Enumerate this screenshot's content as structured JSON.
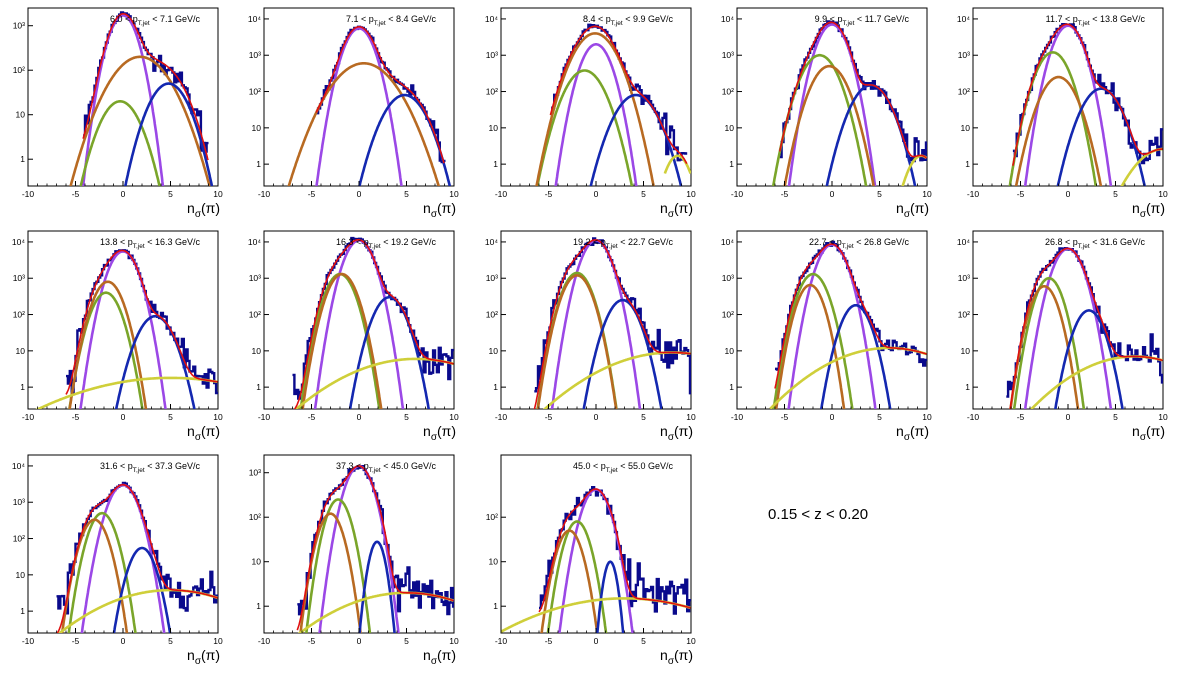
{
  "figure": {
    "z_range_label": "0.15 < z < 0.20",
    "xlabel": "n",
    "xlabel_sub": "σ",
    "xlabel_tail": "(π)",
    "colors": {
      "data": "#0a0a8c",
      "total_fit": "#e01010",
      "pion": "#9b48e6",
      "kaon": "#7aa52a",
      "proton": "#b86a22",
      "electron": "#1428b0",
      "background": "#cfcf3a"
    }
  },
  "chart_data": [
    {
      "type": "histogram-fit",
      "title_main": "6.0 < p",
      "title_sub": "T,jet",
      "title_tail": " < 7.1 GeV/c",
      "xlim": [
        -10,
        10
      ],
      "ylim_log": [
        0.25,
        2500
      ],
      "yscale": "log",
      "x_ticks": [
        "-10",
        "-5",
        "0",
        "5",
        "10"
      ],
      "y_ticks": [
        {
          "v": 1,
          "label": "1"
        },
        {
          "v": 10,
          "label": "10"
        },
        {
          "v": 100,
          "label": "10²"
        },
        {
          "v": 1000,
          "label": "10³"
        }
      ],
      "data_range": [
        -4.2,
        9.0
      ],
      "components": [
        {
          "name": "pion",
          "amp": 1700,
          "mu": 0.0,
          "sigma": 1.0
        },
        {
          "name": "kaon",
          "amp": 20,
          "mu": -0.3,
          "sigma": 1.4
        },
        {
          "name": "proton",
          "amp": 200,
          "mu": 1.8,
          "sigma": 2.0
        },
        {
          "name": "electron",
          "amp": 50,
          "mu": 4.8,
          "sigma": 1.4
        }
      ]
    },
    {
      "type": "histogram-fit",
      "title_main": "7.1 < p",
      "title_sub": "T,jet",
      "title_tail": " < 8.4 GeV/c",
      "xlim": [
        -10,
        10
      ],
      "ylim_log": [
        0.25,
        20000
      ],
      "yscale": "log",
      "x_ticks": [
        "-10",
        "-5",
        "0",
        "5",
        "10"
      ],
      "y_ticks": [
        {
          "v": 1,
          "label": "1"
        },
        {
          "v": 10,
          "label": "10"
        },
        {
          "v": 100,
          "label": "10²"
        },
        {
          "v": 1000,
          "label": "10³"
        },
        {
          "v": 10000,
          "label": "10⁴"
        }
      ],
      "data_range": [
        -4.5,
        9.0
      ],
      "components": [
        {
          "name": "pion",
          "amp": 5500,
          "mu": 0.0,
          "sigma": 1.0
        },
        {
          "name": "proton",
          "amp": 600,
          "mu": 0.5,
          "sigma": 2.0
        },
        {
          "name": "electron",
          "amp": 80,
          "mu": 4.8,
          "sigma": 1.4
        }
      ]
    },
    {
      "type": "histogram-fit",
      "title_main": "8.4 < p",
      "title_sub": "T,jet",
      "title_tail": " < 9.9 GeV/c",
      "xlim": [
        -10,
        10
      ],
      "ylim_log": [
        0.25,
        20000
      ],
      "yscale": "log",
      "x_ticks": [
        "-10",
        "-5",
        "0",
        "5",
        "10"
      ],
      "y_ticks": [
        {
          "v": 1,
          "label": "1"
        },
        {
          "v": 10,
          "label": "10"
        },
        {
          "v": 100,
          "label": "10²"
        },
        {
          "v": 1000,
          "label": "10³"
        },
        {
          "v": 10000,
          "label": "10⁴"
        }
      ],
      "data_range": [
        -4.8,
        9.6
      ],
      "components": [
        {
          "name": "pion",
          "amp": 2000,
          "mu": 0.0,
          "sigma": 1.0
        },
        {
          "name": "kaon",
          "amp": 380,
          "mu": -1.2,
          "sigma": 1.3
        },
        {
          "name": "proton",
          "amp": 4000,
          "mu": -0.1,
          "sigma": 1.4
        },
        {
          "name": "electron",
          "amp": 80,
          "mu": 4.2,
          "sigma": 1.4
        },
        {
          "name": "background",
          "amp": 1.7,
          "mu": 8.6,
          "sigma": 0.9,
          "cut": [
            7.2,
            10
          ]
        }
      ]
    },
    {
      "type": "histogram-fit",
      "title_main": "9.9 < p",
      "title_sub": "T,jet",
      "title_tail": " < 11.7 GeV/c",
      "xlim": [
        -10,
        10
      ],
      "ylim_log": [
        0.25,
        20000
      ],
      "yscale": "log",
      "x_ticks": [
        "-10",
        "-5",
        "0",
        "5",
        "10"
      ],
      "y_ticks": [
        {
          "v": 1,
          "label": "1"
        },
        {
          "v": 10,
          "label": "10"
        },
        {
          "v": 100,
          "label": "10²"
        },
        {
          "v": 1000,
          "label": "10³"
        },
        {
          "v": 10000,
          "label": "10⁴"
        }
      ],
      "data_range": [
        -5.5,
        10.0
      ],
      "components": [
        {
          "name": "pion",
          "amp": 7000,
          "mu": 0.0,
          "sigma": 1.0
        },
        {
          "name": "kaon",
          "amp": 1000,
          "mu": -1.3,
          "sigma": 1.2
        },
        {
          "name": "proton",
          "amp": 500,
          "mu": -0.3,
          "sigma": 1.2
        },
        {
          "name": "electron",
          "amp": 150,
          "mu": 4.1,
          "sigma": 1.3
        },
        {
          "name": "background",
          "amp": 1.7,
          "mu": 9.4,
          "sigma": 1.0,
          "cut": [
            7.0,
            10
          ]
        }
      ]
    },
    {
      "type": "histogram-fit",
      "title_main": "11.7 < p",
      "title_sub": "T,jet",
      "title_tail": " < 13.8 GeV/c",
      "xlim": [
        -10,
        10
      ],
      "ylim_log": [
        0.25,
        20000
      ],
      "yscale": "log",
      "x_ticks": [
        "-10",
        "-5",
        "0",
        "5",
        "10"
      ],
      "y_ticks": [
        {
          "v": 1,
          "label": "1"
        },
        {
          "v": 10,
          "label": "10"
        },
        {
          "v": 100,
          "label": "10²"
        },
        {
          "v": 1000,
          "label": "10³"
        },
        {
          "v": 10000,
          "label": "10⁴"
        }
      ],
      "data_range": [
        -5.8,
        10.0
      ],
      "components": [
        {
          "name": "pion",
          "amp": 6500,
          "mu": 0.0,
          "sigma": 1.0
        },
        {
          "name": "kaon",
          "amp": 1200,
          "mu": -1.6,
          "sigma": 1.1
        },
        {
          "name": "proton",
          "amp": 250,
          "mu": -1.0,
          "sigma": 1.2
        },
        {
          "name": "electron",
          "amp": 120,
          "mu": 3.5,
          "sigma": 1.3
        },
        {
          "name": "background",
          "amp": 2.6,
          "mu": 10.0,
          "sigma": 2.0,
          "cut": [
            5.0,
            10
          ]
        }
      ]
    },
    {
      "type": "histogram-fit",
      "title_main": "13.8 < p",
      "title_sub": "T,jet",
      "title_tail": " < 16.3 GeV/c",
      "xlim": [
        -10,
        10
      ],
      "ylim_log": [
        0.25,
        20000
      ],
      "yscale": "log",
      "x_ticks": [
        "-10",
        "-5",
        "0",
        "5",
        "10"
      ],
      "y_ticks": [
        {
          "v": 1,
          "label": "1"
        },
        {
          "v": 10,
          "label": "10"
        },
        {
          "v": 100,
          "label": "10²"
        },
        {
          "v": 1000,
          "label": "10³"
        },
        {
          "v": 10000,
          "label": "10⁴"
        }
      ],
      "data_range": [
        -6.0,
        10.0
      ],
      "components": [
        {
          "name": "pion",
          "amp": 5500,
          "mu": 0.0,
          "sigma": 1.0
        },
        {
          "name": "kaon",
          "amp": 400,
          "mu": -1.8,
          "sigma": 1.0
        },
        {
          "name": "proton",
          "amp": 800,
          "mu": -1.6,
          "sigma": 1.0
        },
        {
          "name": "electron",
          "amp": 90,
          "mu": 3.4,
          "sigma": 1.2
        },
        {
          "name": "background",
          "amp": 1.8,
          "mu": 5.0,
          "sigma": 7.0,
          "cut": [
            -10,
            10
          ]
        }
      ]
    },
    {
      "type": "histogram-fit",
      "title_main": "16.3 < p",
      "title_sub": "T,jet",
      "title_tail": " < 19.2 GeV/c",
      "xlim": [
        -10,
        10
      ],
      "ylim_log": [
        0.25,
        20000
      ],
      "yscale": "log",
      "x_ticks": [
        "-10",
        "-5",
        "0",
        "5",
        "10"
      ],
      "y_ticks": [
        {
          "v": 1,
          "label": "1"
        },
        {
          "v": 10,
          "label": "10"
        },
        {
          "v": 100,
          "label": "10²"
        },
        {
          "v": 1000,
          "label": "10³"
        },
        {
          "v": 10000,
          "label": "10⁴"
        }
      ],
      "data_range": [
        -7.0,
        10.0
      ],
      "components": [
        {
          "name": "pion",
          "amp": 11000,
          "mu": 0.0,
          "sigma": 1.0
        },
        {
          "name": "kaon",
          "amp": 1300,
          "mu": -2.0,
          "sigma": 1.0
        },
        {
          "name": "proton",
          "amp": 1300,
          "mu": -1.8,
          "sigma": 1.0
        },
        {
          "name": "electron",
          "amp": 300,
          "mu": 3.2,
          "sigma": 1.1
        },
        {
          "name": "background",
          "amp": 6.0,
          "mu": 6.0,
          "sigma": 5.0,
          "cut": [
            -10,
            10
          ]
        }
      ]
    },
    {
      "type": "histogram-fit",
      "title_main": "19.2 < p",
      "title_sub": "T,jet",
      "title_tail": " < 22.7 GeV/c",
      "xlim": [
        -10,
        10
      ],
      "ylim_log": [
        0.25,
        20000
      ],
      "yscale": "log",
      "x_ticks": [
        "-10",
        "-5",
        "0",
        "5",
        "10"
      ],
      "y_ticks": [
        {
          "v": 1,
          "label": "1"
        },
        {
          "v": 10,
          "label": "10"
        },
        {
          "v": 100,
          "label": "10²"
        },
        {
          "v": 1000,
          "label": "10³"
        },
        {
          "v": 10000,
          "label": "10⁴"
        }
      ],
      "data_range": [
        -6.5,
        10.0
      ],
      "components": [
        {
          "name": "pion",
          "amp": 11000,
          "mu": 0.0,
          "sigma": 1.0
        },
        {
          "name": "kaon",
          "amp": 1400,
          "mu": -2.0,
          "sigma": 1.0
        },
        {
          "name": "proton",
          "amp": 1200,
          "mu": -2.0,
          "sigma": 1.0
        },
        {
          "name": "electron",
          "amp": 250,
          "mu": 2.8,
          "sigma": 1.1
        },
        {
          "name": "background",
          "amp": 9.0,
          "mu": 8.0,
          "sigma": 5.0,
          "cut": [
            -8,
            10
          ]
        }
      ]
    },
    {
      "type": "histogram-fit",
      "title_main": "22.7 < p",
      "title_sub": "T,jet",
      "title_tail": " < 26.8 GeV/c",
      "xlim": [
        -10,
        10
      ],
      "ylim_log": [
        0.25,
        20000
      ],
      "yscale": "log",
      "x_ticks": [
        "-10",
        "-5",
        "0",
        "5",
        "10"
      ],
      "y_ticks": [
        {
          "v": 1,
          "label": "1"
        },
        {
          "v": 10,
          "label": "10"
        },
        {
          "v": 100,
          "label": "10²"
        },
        {
          "v": 1000,
          "label": "10³"
        },
        {
          "v": 10000,
          "label": "10⁴"
        }
      ],
      "data_range": [
        -6.0,
        10.0
      ],
      "components": [
        {
          "name": "pion",
          "amp": 8500,
          "mu": 0.0,
          "sigma": 1.0
        },
        {
          "name": "kaon",
          "amp": 1300,
          "mu": -2.0,
          "sigma": 1.0
        },
        {
          "name": "proton",
          "amp": 650,
          "mu": -2.3,
          "sigma": 0.9
        },
        {
          "name": "electron",
          "amp": 180,
          "mu": 2.5,
          "sigma": 1.0
        },
        {
          "name": "background",
          "amp": 12.0,
          "mu": 6.0,
          "sigma": 4.5,
          "cut": [
            -6.5,
            10
          ]
        }
      ]
    },
    {
      "type": "histogram-fit",
      "title_main": "26.8 < p",
      "title_sub": "T,jet",
      "title_tail": " < 31.6 GeV/c",
      "xlim": [
        -10,
        10
      ],
      "ylim_log": [
        0.25,
        20000
      ],
      "yscale": "log",
      "x_ticks": [
        "-10",
        "-5",
        "0",
        "5",
        "10"
      ],
      "y_ticks": [
        {
          "v": 1,
          "label": "1"
        },
        {
          "v": 10,
          "label": "10"
        },
        {
          "v": 100,
          "label": "10²"
        },
        {
          "v": 1000,
          "label": "10³"
        },
        {
          "v": 10000,
          "label": "10⁴"
        }
      ],
      "data_range": [
        -6.5,
        10.0
      ],
      "components": [
        {
          "name": "pion",
          "amp": 6500,
          "mu": 0.0,
          "sigma": 1.0
        },
        {
          "name": "kaon",
          "amp": 1000,
          "mu": -2.0,
          "sigma": 0.9
        },
        {
          "name": "proton",
          "amp": 600,
          "mu": -2.5,
          "sigma": 0.9
        },
        {
          "name": "electron",
          "amp": 130,
          "mu": 2.2,
          "sigma": 1.0
        },
        {
          "name": "background",
          "amp": 7.0,
          "mu": 7.0,
          "sigma": 4.2,
          "cut": [
            -5,
            10
          ]
        }
      ]
    },
    {
      "type": "histogram-fit",
      "title_main": "31.6 < p",
      "title_sub": "T,jet",
      "title_tail": " < 37.3 GeV/c",
      "xlim": [
        -10,
        10
      ],
      "ylim_log": [
        0.25,
        20000
      ],
      "yscale": "log",
      "x_ticks": [
        "-10",
        "-5",
        "0",
        "5",
        "10"
      ],
      "y_ticks": [
        {
          "v": 1,
          "label": "1"
        },
        {
          "v": 10,
          "label": "10"
        },
        {
          "v": 100,
          "label": "10²"
        },
        {
          "v": 1000,
          "label": "10³"
        },
        {
          "v": 10000,
          "label": "10⁴"
        }
      ],
      "data_range": [
        -7.0,
        10.0
      ],
      "components": [
        {
          "name": "pion",
          "amp": 3000,
          "mu": 0.0,
          "sigma": 1.0
        },
        {
          "name": "kaon",
          "amp": 500,
          "mu": -2.2,
          "sigma": 0.9
        },
        {
          "name": "proton",
          "amp": 330,
          "mu": -3.0,
          "sigma": 0.9
        },
        {
          "name": "electron",
          "amp": 55,
          "mu": 2.0,
          "sigma": 0.9
        },
        {
          "name": "background",
          "amp": 3.8,
          "mu": 5.0,
          "sigma": 5.0,
          "cut": [
            -10,
            10
          ]
        }
      ]
    },
    {
      "type": "histogram-fit",
      "title_main": "37.3 < p",
      "title_sub": "T,jet",
      "title_tail": " < 45.0 GeV/c",
      "xlim": [
        -10,
        10
      ],
      "ylim_log": [
        0.25,
        2500
      ],
      "yscale": "log",
      "x_ticks": [
        "-10",
        "-5",
        "0",
        "5",
        "10"
      ],
      "y_ticks": [
        {
          "v": 1,
          "label": "1"
        },
        {
          "v": 10,
          "label": "10"
        },
        {
          "v": 100,
          "label": "10²"
        },
        {
          "v": 1000,
          "label": "10³"
        }
      ],
      "data_range": [
        -6.5,
        10.0
      ],
      "components": [
        {
          "name": "pion",
          "amp": 1400,
          "mu": 0.0,
          "sigma": 1.0
        },
        {
          "name": "kaon",
          "amp": 250,
          "mu": -2.2,
          "sigma": 0.9
        },
        {
          "name": "proton",
          "amp": 120,
          "mu": -3.0,
          "sigma": 0.9
        },
        {
          "name": "electron",
          "amp": 28,
          "mu": 1.9,
          "sigma": 0.6
        },
        {
          "name": "background",
          "amp": 2.0,
          "mu": 5.0,
          "sigma": 5.5,
          "cut": [
            -8,
            10
          ]
        }
      ]
    },
    {
      "type": "histogram-fit",
      "title_main": "45.0 < p",
      "title_sub": "T,jet",
      "title_tail": " < 55.0 GeV/c",
      "xlim": [
        -10,
        10
      ],
      "ylim_log": [
        0.25,
        2500
      ],
      "yscale": "log",
      "x_ticks": [
        "-10",
        "-5",
        "0",
        "5",
        "10"
      ],
      "y_ticks": [
        {
          "v": 1,
          "label": "1"
        },
        {
          "v": 10,
          "label": "10"
        },
        {
          "v": 100,
          "label": "10²"
        }
      ],
      "data_range": [
        -6.0,
        10.0
      ],
      "components": [
        {
          "name": "pion",
          "amp": 420,
          "mu": 0.0,
          "sigma": 1.0
        },
        {
          "name": "kaon",
          "amp": 80,
          "mu": -2.0,
          "sigma": 0.9
        },
        {
          "name": "proton",
          "amp": 50,
          "mu": -2.8,
          "sigma": 0.9
        },
        {
          "name": "electron",
          "amp": 10,
          "mu": 1.5,
          "sigma": 0.5
        },
        {
          "name": "background",
          "amp": 1.5,
          "mu": 3.0,
          "sigma": 7.0,
          "cut": [
            -10,
            10
          ]
        }
      ]
    }
  ]
}
